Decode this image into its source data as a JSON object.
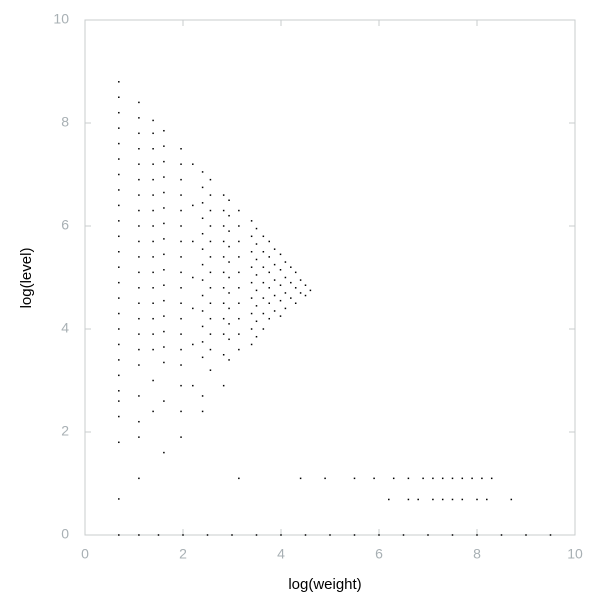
{
  "chart_data": {
    "type": "scatter",
    "xlabel": "log(weight)",
    "ylabel": "log(level)",
    "xlim": [
      0,
      10
    ],
    "ylim": [
      0,
      10
    ],
    "xticks": [
      0,
      2,
      4,
      6,
      8,
      10
    ],
    "yticks": [
      0,
      2,
      4,
      6,
      8,
      10
    ],
    "color": "#000000",
    "grid": false,
    "x": [
      0.69,
      0.69,
      0.69,
      0.69,
      0.69,
      0.69,
      0.69,
      0.69,
      0.69,
      0.69,
      0.69,
      0.69,
      0.69,
      0.69,
      0.69,
      0.69,
      0.69,
      0.69,
      0.69,
      0.69,
      0.69,
      0.69,
      0.69,
      0.69,
      0.69,
      1.1,
      1.1,
      1.1,
      1.1,
      1.1,
      1.1,
      1.1,
      1.1,
      1.1,
      1.1,
      1.1,
      1.1,
      1.1,
      1.1,
      1.1,
      1.1,
      1.1,
      1.1,
      1.1,
      1.1,
      1.1,
      1.1,
      1.39,
      1.39,
      1.39,
      1.39,
      1.39,
      1.39,
      1.39,
      1.39,
      1.39,
      1.39,
      1.39,
      1.39,
      1.39,
      1.39,
      1.39,
      1.39,
      1.39,
      1.39,
      1.61,
      1.61,
      1.61,
      1.61,
      1.61,
      1.61,
      1.61,
      1.61,
      1.61,
      1.61,
      1.61,
      1.61,
      1.61,
      1.61,
      1.61,
      1.61,
      1.61,
      1.61,
      1.96,
      1.96,
      1.96,
      1.96,
      1.96,
      1.96,
      1.96,
      1.96,
      1.96,
      1.96,
      1.96,
      1.96,
      1.96,
      1.96,
      1.96,
      1.96,
      1.96,
      1.96,
      2.2,
      2.2,
      2.2,
      2.2,
      2.2,
      2.2,
      2.2,
      2.4,
      2.4,
      2.4,
      2.4,
      2.4,
      2.4,
      2.4,
      2.4,
      2.4,
      2.4,
      2.4,
      2.4,
      2.4,
      2.4,
      2.4,
      2.56,
      2.56,
      2.56,
      2.56,
      2.56,
      2.56,
      2.56,
      2.56,
      2.56,
      2.56,
      2.56,
      2.56,
      2.56,
      2.83,
      2.83,
      2.83,
      2.83,
      2.83,
      2.83,
      2.83,
      2.83,
      2.83,
      2.83,
      2.83,
      2.83,
      2.94,
      2.94,
      2.94,
      2.94,
      2.94,
      2.94,
      2.94,
      2.94,
      2.94,
      2.94,
      2.94,
      3.14,
      3.14,
      3.14,
      3.14,
      3.14,
      3.14,
      3.14,
      3.14,
      3.14,
      3.14,
      3.4,
      3.4,
      3.4,
      3.4,
      3.4,
      3.4,
      3.4,
      3.4,
      3.4,
      3.5,
      3.5,
      3.5,
      3.5,
      3.5,
      3.5,
      3.5,
      3.5,
      3.64,
      3.64,
      3.64,
      3.64,
      3.64,
      3.64,
      3.64,
      3.76,
      3.76,
      3.76,
      3.76,
      3.76,
      3.76,
      3.87,
      3.87,
      3.87,
      3.87,
      3.87,
      3.99,
      3.99,
      3.99,
      3.99,
      3.99,
      4.09,
      4.09,
      4.09,
      4.09,
      4.2,
      4.2,
      4.2,
      4.3,
      4.3,
      4.3,
      4.4,
      4.4,
      4.5,
      4.5,
      4.6,
      3.14,
      4.4,
      4.9,
      5.5,
      5.9,
      6.3,
      6.6,
      6.9,
      7.1,
      7.3,
      7.5,
      7.7,
      7.9,
      8.1,
      8.3,
      6.2,
      6.6,
      6.8,
      7.1,
      7.3,
      7.5,
      7.7,
      8.0,
      8.2,
      8.7,
      0.69,
      1.1,
      1.5,
      2.0,
      2.5,
      3.0,
      3.5,
      4.0,
      4.5,
      5.0,
      5.5,
      6.0,
      6.5,
      7.0,
      7.5,
      8.0,
      8.5,
      9.0,
      9.5
    ],
    "values": [
      8.8,
      8.5,
      8.2,
      7.9,
      7.6,
      7.3,
      7.0,
      6.7,
      6.4,
      6.1,
      5.8,
      5.5,
      5.2,
      4.9,
      4.6,
      4.3,
      4.0,
      3.7,
      3.4,
      3.1,
      2.8,
      2.6,
      2.3,
      1.8,
      0.7,
      8.4,
      8.1,
      7.8,
      7.5,
      7.2,
      6.9,
      6.6,
      6.3,
      6.0,
      5.7,
      5.4,
      5.1,
      4.8,
      4.5,
      4.2,
      3.9,
      3.6,
      3.3,
      2.7,
      2.2,
      1.9,
      1.1,
      8.05,
      7.8,
      7.5,
      7.2,
      6.9,
      6.6,
      6.3,
      6.0,
      5.7,
      5.4,
      5.1,
      4.8,
      4.5,
      4.2,
      3.9,
      3.6,
      3.0,
      2.4,
      7.85,
      7.55,
      7.25,
      6.95,
      6.65,
      6.35,
      6.05,
      5.75,
      5.45,
      5.15,
      4.85,
      4.55,
      4.25,
      3.95,
      3.65,
      3.35,
      2.6,
      1.6,
      7.5,
      7.2,
      6.9,
      6.6,
      6.3,
      6.0,
      5.7,
      5.4,
      5.1,
      4.8,
      4.5,
      4.2,
      3.9,
      3.6,
      3.3,
      2.9,
      2.4,
      1.9,
      7.2,
      6.4,
      5.7,
      5.0,
      4.4,
      3.7,
      2.9,
      7.05,
      6.75,
      6.45,
      6.15,
      5.85,
      5.55,
      5.25,
      4.95,
      4.65,
      4.35,
      4.05,
      3.75,
      3.45,
      2.7,
      2.4,
      6.9,
      6.6,
      6.3,
      6.0,
      5.7,
      5.4,
      5.1,
      4.8,
      4.5,
      4.2,
      3.9,
      3.6,
      3.2,
      6.6,
      6.3,
      6.0,
      5.7,
      5.4,
      5.1,
      4.8,
      4.5,
      4.2,
      3.9,
      3.5,
      2.9,
      6.5,
      6.2,
      5.9,
      5.6,
      5.3,
      5.0,
      4.7,
      4.4,
      4.1,
      3.8,
      3.4,
      6.3,
      6.0,
      5.7,
      5.4,
      5.1,
      4.8,
      4.5,
      4.2,
      3.9,
      3.6,
      6.1,
      5.8,
      5.5,
      5.2,
      4.9,
      4.6,
      4.3,
      4.0,
      3.7,
      5.95,
      5.65,
      5.35,
      5.05,
      4.75,
      4.45,
      4.15,
      3.85,
      5.8,
      5.5,
      5.2,
      4.9,
      4.6,
      4.3,
      4.0,
      5.7,
      5.4,
      5.1,
      4.8,
      4.5,
      4.2,
      5.55,
      5.25,
      4.95,
      4.65,
      4.35,
      5.45,
      5.15,
      4.85,
      4.55,
      4.25,
      5.3,
      5.0,
      4.7,
      4.4,
      5.2,
      4.9,
      4.6,
      5.1,
      4.8,
      4.5,
      4.95,
      4.7,
      4.85,
      4.65,
      4.75,
      1.1,
      1.1,
      1.1,
      1.1,
      1.1,
      1.1,
      1.1,
      1.1,
      1.1,
      1.1,
      1.1,
      1.1,
      1.1,
      1.1,
      1.1,
      0.69,
      0.69,
      0.69,
      0.69,
      0.69,
      0.69,
      0.69,
      0.69,
      0.69,
      0.69,
      0,
      0,
      0,
      0,
      0,
      0,
      0,
      0,
      0,
      0,
      0,
      0,
      0,
      0,
      0,
      0,
      0,
      0,
      0
    ]
  }
}
